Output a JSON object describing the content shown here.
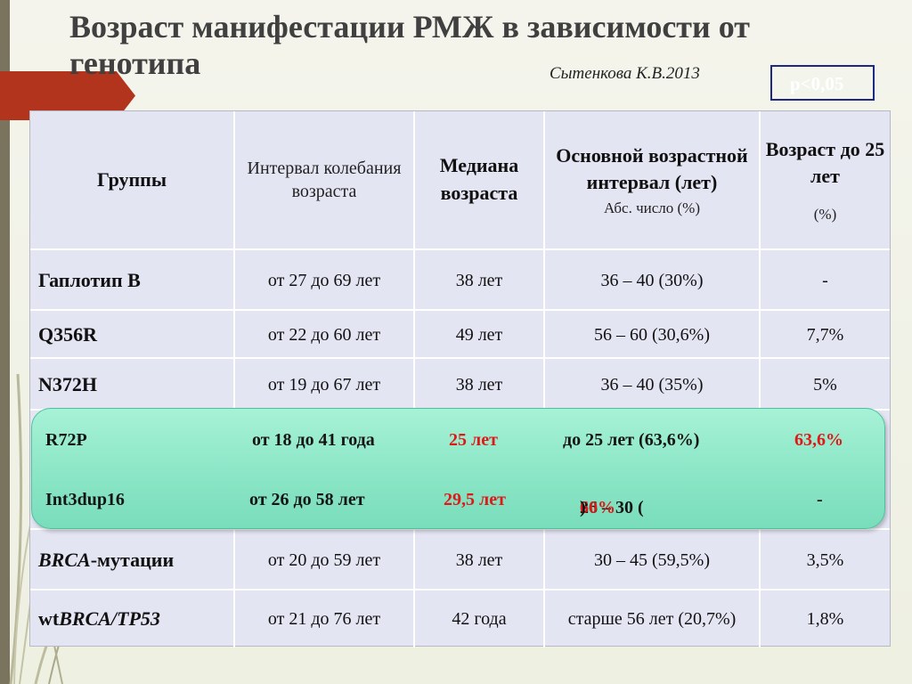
{
  "title": "Возраст манифестации РМЖ в зависимости от генотипа",
  "author": "Сытенкова К.В.2013",
  "p_value": "p<0,05",
  "colors": {
    "accent": "#b2341d",
    "table_bg": "#e4e5f3",
    "highlight": "#8be6c6",
    "emphasis_red": "#e01818",
    "p_box_border": "#1d2a84"
  },
  "header": {
    "groups": "Группы",
    "range": "Интервал колебания возраста",
    "median": "Медиана возраста",
    "main_interval": "Основной возрастной интервал (лет)",
    "main_interval_sub": "Абс. число (%)",
    "under25": "Возраст до 25 лет",
    "under25_sub": "(%)"
  },
  "rows": [
    {
      "name": "Гаплотип B",
      "range": "от 27 до 69 лет",
      "median": "38 лет",
      "interval": "36 – 40 (30%)",
      "under25": "-"
    },
    {
      "name": "Q356R",
      "range": "от 22 до 60 лет",
      "median": "49 лет",
      "interval": "56 – 60 (30,6%)",
      "under25": "7,7%"
    },
    {
      "name": "N372H",
      "range": "от 19 до 67 лет",
      "median": "38 лет",
      "interval": "36 – 40 (35%)",
      "under25": "5%"
    }
  ],
  "highlighted": [
    {
      "name": "R72P",
      "range": "от 18 до 41 года",
      "median": "25 лет",
      "interval": "до 25 лет (63,6%)",
      "under25": "63,6%"
    },
    {
      "name": "Int3dup16",
      "range": "от 26 до 58 лет",
      "median": "29,5 лет",
      "interval_prefix": "26 – 30 (",
      "interval_value": "60%",
      "interval_suffix": ")",
      "under25": "-"
    }
  ],
  "brca": {
    "name_italic": "BRCA",
    "name_rest": "-мутации",
    "range": "от 20 до 59 лет",
    "median": "38 лет",
    "interval": "30 – 45 (59,5%)",
    "under25": "3,5%"
  },
  "wtbrca": {
    "name_prefix": "wt",
    "name_italic": "BRCA/TP53",
    "range": "от 21 до 76 лет",
    "median": "42 года",
    "interval": "старше 56 лет (20,7%)",
    "under25": "1,8%"
  }
}
